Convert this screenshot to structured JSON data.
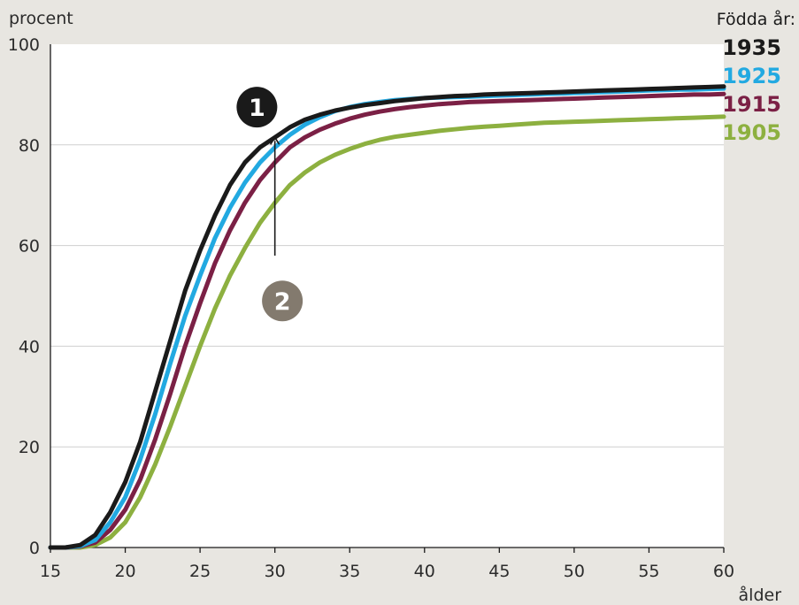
{
  "chart_data": {
    "type": "line",
    "ylabel": "procent",
    "xlabel": "ålder",
    "legend_title": "Födda år:",
    "xlim": [
      15,
      60
    ],
    "ylim": [
      0,
      100
    ],
    "x_ticks": [
      15,
      20,
      25,
      30,
      35,
      40,
      45,
      50,
      55,
      60
    ],
    "y_ticks": [
      0,
      20,
      40,
      60,
      80,
      100
    ],
    "grid": "horizontal",
    "legend_position": "top-right",
    "x": [
      15,
      16,
      17,
      18,
      19,
      20,
      21,
      22,
      23,
      24,
      25,
      26,
      27,
      28,
      29,
      30,
      31,
      32,
      33,
      34,
      35,
      36,
      37,
      38,
      39,
      40,
      41,
      42,
      43,
      44,
      45,
      46,
      47,
      48,
      49,
      50,
      51,
      52,
      53,
      54,
      55,
      56,
      57,
      58,
      59,
      60
    ],
    "series": [
      {
        "name": "1935",
        "color": "#1a1a1a",
        "values": [
          0,
          0,
          0.5,
          2.5,
          7,
          13,
          21,
          31,
          41,
          51,
          59,
          66,
          72,
          76.5,
          79.5,
          81.5,
          83.5,
          85,
          86,
          86.8,
          87.4,
          87.9,
          88.3,
          88.7,
          89,
          89.3,
          89.5,
          89.7,
          89.8,
          90,
          90.1,
          90.2,
          90.3,
          90.4,
          90.5,
          90.6,
          90.7,
          90.8,
          90.9,
          91,
          91.1,
          91.2,
          91.3,
          91.4,
          91.5,
          91.6
        ]
      },
      {
        "name": "1925",
        "color": "#22a9e1",
        "values": [
          0,
          0,
          0.3,
          1.5,
          5,
          10,
          17.5,
          26.5,
          36.5,
          46,
          54,
          61.5,
          67.5,
          72.5,
          76.5,
          79.5,
          82,
          84,
          85.5,
          86.7,
          87.5,
          88.1,
          88.5,
          88.9,
          89.1,
          89.3,
          89.4,
          89.5,
          89.6,
          89.7,
          89.8,
          89.9,
          90,
          90.1,
          90.2,
          90.3,
          90.4,
          90.5,
          90.6,
          90.7,
          90.8,
          90.9,
          91,
          91,
          91.1,
          91.2
        ]
      },
      {
        "name": "1915",
        "color": "#7b2045",
        "values": [
          0,
          0,
          0.2,
          1,
          3.5,
          7.5,
          13.5,
          21.5,
          30.5,
          40,
          48.5,
          56.5,
          63,
          68.5,
          73,
          76.5,
          79.5,
          81.5,
          83,
          84.2,
          85.2,
          86,
          86.6,
          87.1,
          87.5,
          87.8,
          88.1,
          88.3,
          88.5,
          88.6,
          88.7,
          88.8,
          88.9,
          89,
          89.1,
          89.2,
          89.3,
          89.4,
          89.5,
          89.6,
          89.7,
          89.8,
          89.9,
          90,
          90,
          90.1
        ]
      },
      {
        "name": "1905",
        "color": "#8db040",
        "values": [
          0,
          0,
          0,
          0.5,
          2,
          5,
          10,
          16.5,
          24,
          32,
          40,
          47.5,
          54,
          59.5,
          64.5,
          68.5,
          72,
          74.5,
          76.5,
          78,
          79.2,
          80.2,
          81,
          81.6,
          82,
          82.4,
          82.8,
          83.1,
          83.4,
          83.6,
          83.8,
          84,
          84.2,
          84.4,
          84.5,
          84.6,
          84.7,
          84.8,
          84.9,
          85,
          85.1,
          85.2,
          85.3,
          85.4,
          85.5,
          85.6
        ]
      }
    ],
    "annotations": [
      {
        "label": "1",
        "x": 28.8,
        "y": 87.5,
        "color": "#1a1a1a"
      },
      {
        "label": "2",
        "x": 30.5,
        "y": 49,
        "color": "#837a6e"
      }
    ],
    "arrow": {
      "x": 30,
      "y_from": 58,
      "y_to": 81.5
    }
  }
}
